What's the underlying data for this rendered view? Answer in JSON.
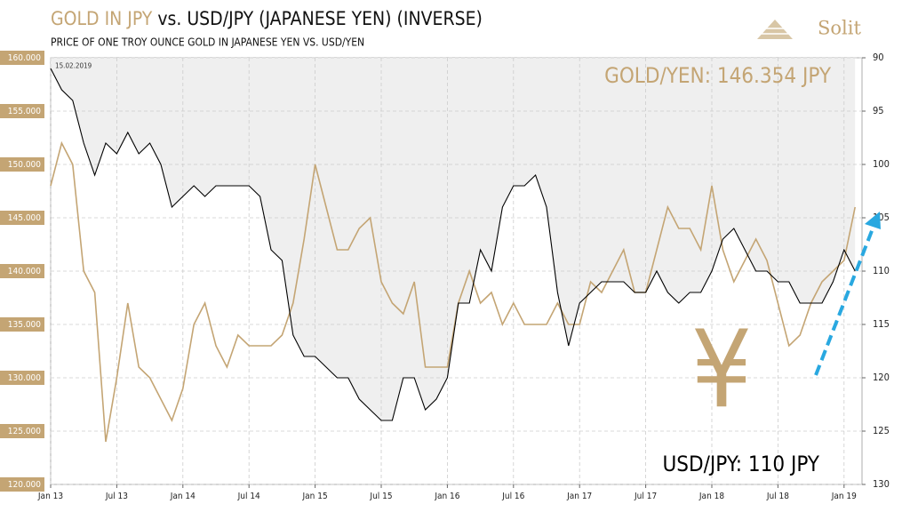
{
  "chart_data": {
    "type": "line",
    "title": [
      "GOLD IN JPY",
      "vs. USD/JPY (JAPANESE YEN) (INVERSE)"
    ],
    "subtitle": "PRICE OF ONE TROY OUNCE GOLD IN JAPANESE YEN VS. USD/YEN",
    "logo": "Solit",
    "date_note": "15.02.2019",
    "annotations": [
      "GOLD/YEN: 146.354 JPY",
      "USD/JPY: 110 JPY"
    ],
    "symbol": "¥",
    "x": [
      "2013-01",
      "2013-02",
      "2013-03",
      "2013-04",
      "2013-05",
      "2013-06",
      "2013-07",
      "2013-08",
      "2013-09",
      "2013-10",
      "2013-11",
      "2013-12",
      "2014-01",
      "2014-02",
      "2014-03",
      "2014-04",
      "2014-05",
      "2014-06",
      "2014-07",
      "2014-08",
      "2014-09",
      "2014-10",
      "2014-11",
      "2014-12",
      "2015-01",
      "2015-02",
      "2015-03",
      "2015-04",
      "2015-05",
      "2015-06",
      "2015-07",
      "2015-08",
      "2015-09",
      "2015-10",
      "2015-11",
      "2015-12",
      "2016-01",
      "2016-02",
      "2016-03",
      "2016-04",
      "2016-05",
      "2016-06",
      "2016-07",
      "2016-08",
      "2016-09",
      "2016-10",
      "2016-11",
      "2016-12",
      "2017-01",
      "2017-02",
      "2017-03",
      "2017-04",
      "2017-05",
      "2017-06",
      "2017-07",
      "2017-08",
      "2017-09",
      "2017-10",
      "2017-11",
      "2017-12",
      "2018-01",
      "2018-02",
      "2018-03",
      "2018-04",
      "2018-05",
      "2018-06",
      "2018-07",
      "2018-08",
      "2018-09",
      "2018-10",
      "2018-11",
      "2018-12",
      "2019-01",
      "2019-02"
    ],
    "series": [
      {
        "name": "GOLD/YEN",
        "color": "#c4a574",
        "axis": "y",
        "values": [
          148000,
          152000,
          150000,
          140000,
          138000,
          124000,
          130000,
          137000,
          131000,
          130000,
          128000,
          126000,
          129000,
          135000,
          137000,
          133000,
          131000,
          134000,
          133000,
          133000,
          133000,
          134000,
          137000,
          143000,
          150000,
          146000,
          142000,
          142000,
          144000,
          145000,
          139000,
          137000,
          136000,
          139000,
          131000,
          131000,
          131000,
          137000,
          140000,
          137000,
          138000,
          135000,
          137000,
          135000,
          135000,
          135000,
          137000,
          135000,
          135000,
          139000,
          138000,
          140000,
          142000,
          138000,
          138000,
          142000,
          146000,
          144000,
          144000,
          142000,
          148000,
          142000,
          139000,
          141000,
          143000,
          141000,
          137000,
          133000,
          134000,
          137000,
          139000,
          140000,
          141000,
          146000
        ]
      },
      {
        "name": "USD/JPY",
        "color": "#000000",
        "axis": "y2",
        "values": [
          91,
          93,
          94,
          98,
          101,
          98,
          99,
          97,
          99,
          98,
          100,
          104,
          103,
          102,
          103,
          102,
          102,
          102,
          102,
          103,
          108,
          109,
          116,
          118,
          118,
          119,
          120,
          120,
          122,
          123,
          124,
          124,
          120,
          120,
          123,
          122,
          120,
          113,
          113,
          108,
          110,
          104,
          102,
          102,
          101,
          104,
          112,
          117,
          113,
          112,
          111,
          111,
          111,
          112,
          112,
          110,
          112,
          113,
          112,
          112,
          110,
          107,
          106,
          108,
          110,
          110,
          111,
          111,
          113,
          113,
          113,
          111,
          108,
          110
        ]
      }
    ],
    "xticks": [
      {
        "value": "2013-01",
        "label": "Jan 13"
      },
      {
        "value": "2013-07",
        "label": "Jul 13"
      },
      {
        "value": "2014-01",
        "label": "Jan 14"
      },
      {
        "value": "2014-07",
        "label": "Jul 14"
      },
      {
        "value": "2015-01",
        "label": "Jan 15"
      },
      {
        "value": "2015-07",
        "label": "Jul 15"
      },
      {
        "value": "2016-01",
        "label": "Jan 16"
      },
      {
        "value": "2016-07",
        "label": "Jul 16"
      },
      {
        "value": "2017-01",
        "label": "Jan 17"
      },
      {
        "value": "2017-07",
        "label": "Jul 17"
      },
      {
        "value": "2018-01",
        "label": "Jan 18"
      },
      {
        "value": "2018-07",
        "label": "Jul 18"
      },
      {
        "value": "2019-01",
        "label": "Jan 19"
      }
    ],
    "ylim": [
      120000,
      160000
    ],
    "yticks": [
      {
        "value": 120000,
        "label": "120.000"
      },
      {
        "value": 125000,
        "label": "125.000"
      },
      {
        "value": 130000,
        "label": "130.000"
      },
      {
        "value": 135000,
        "label": "135.000"
      },
      {
        "value": 140000,
        "label": "140.000"
      },
      {
        "value": 145000,
        "label": "145.000"
      },
      {
        "value": 150000,
        "label": "150.000"
      },
      {
        "value": 155000,
        "label": "155.000"
      },
      {
        "value": 160000,
        "label": "160.000"
      }
    ],
    "y2lim": [
      130,
      90
    ],
    "y2ticks": [
      130,
      125,
      120,
      115,
      110,
      105,
      100,
      95,
      90
    ],
    "grid": true
  }
}
